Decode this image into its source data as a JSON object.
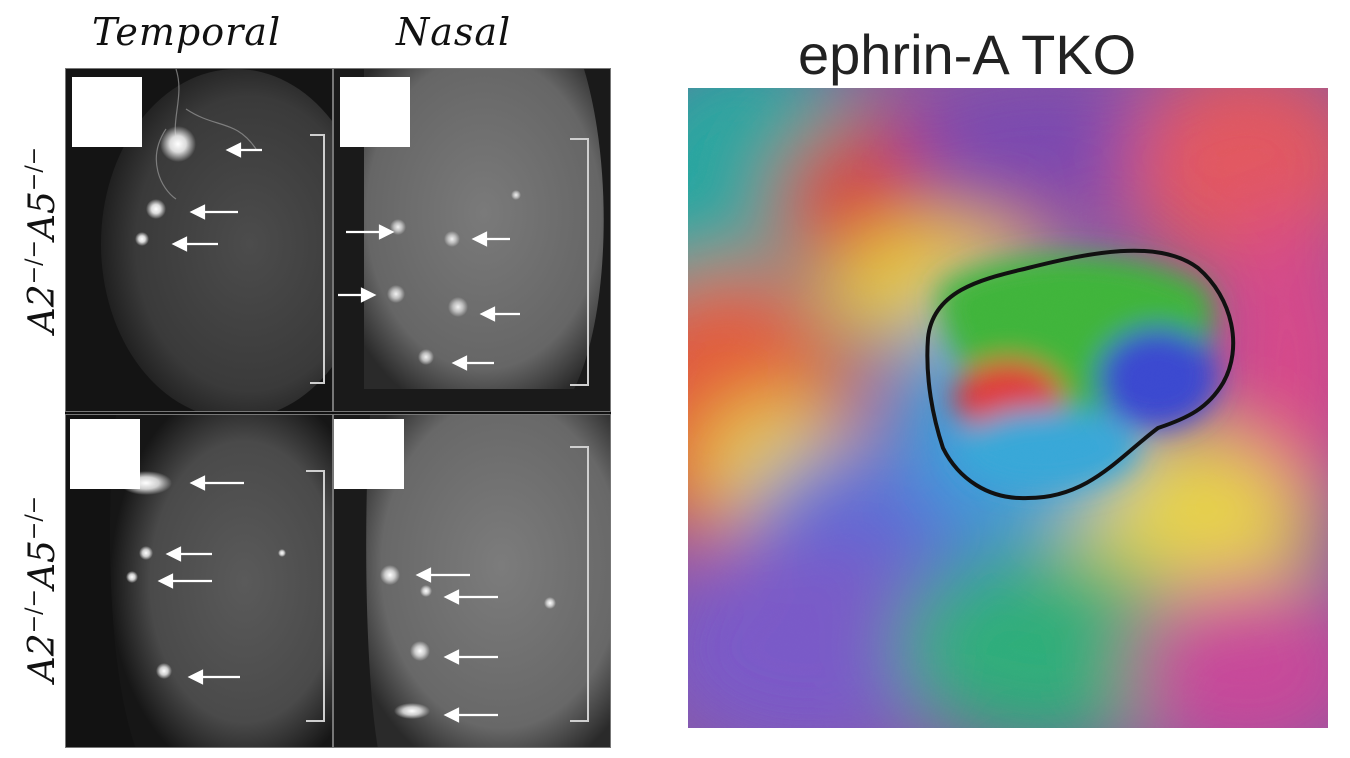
{
  "headers": {
    "temporal": "Temporal",
    "nasal": "Nasal"
  },
  "rows": [
    {
      "base_a": "A2",
      "sup_a": "−/−",
      "base_b": "A5",
      "sup_b": "−/−"
    },
    {
      "base_a": "A2",
      "sup_a": "−/−",
      "base_b": "A5",
      "sup_b": "−/−"
    }
  ],
  "map": {
    "title": "ephrin-A TKO"
  },
  "colors": {
    "background": "#ffffff",
    "panel_bg": "#1a1a1a",
    "arrow": "#ffffff",
    "outline": "#111111"
  }
}
